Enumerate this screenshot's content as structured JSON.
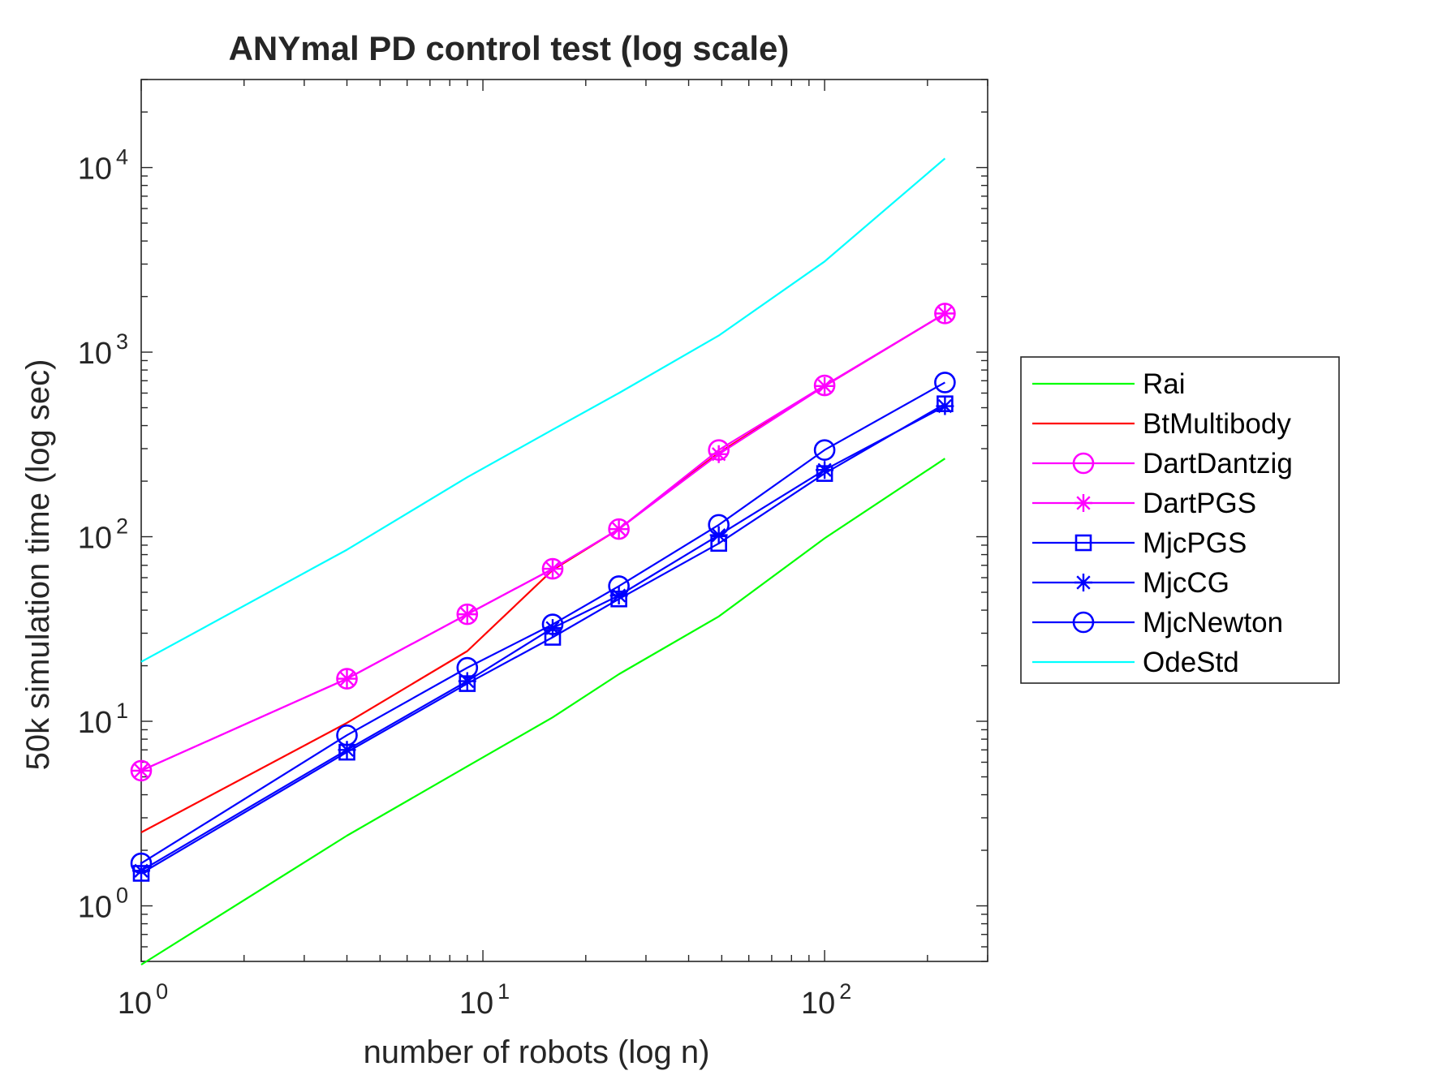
{
  "chart_data": {
    "type": "line",
    "title": "ANYmal PD control test (log scale)",
    "xlabel": "number of robots (log n)",
    "ylabel": "50k simulation time (log sec)",
    "xscale": "log",
    "yscale": "log",
    "xlim": [
      1,
      300
    ],
    "ylim": [
      0.5,
      30000
    ],
    "x_ticks": [
      {
        "base": "10",
        "exp": "0",
        "value": 1
      },
      {
        "base": "10",
        "exp": "1",
        "value": 10
      },
      {
        "base": "10",
        "exp": "2",
        "value": 100
      }
    ],
    "y_ticks": [
      {
        "base": "10",
        "exp": "0",
        "value": 1
      },
      {
        "base": "10",
        "exp": "1",
        "value": 10
      },
      {
        "base": "10",
        "exp": "2",
        "value": 100
      },
      {
        "base": "10",
        "exp": "3",
        "value": 1000
      },
      {
        "base": "10",
        "exp": "4",
        "value": 10000
      }
    ],
    "grid": false,
    "legend_position": "outside-right",
    "series": [
      {
        "name": "Rai",
        "color": "#00ff00",
        "marker": "none",
        "x": [
          1,
          4,
          9,
          16,
          25,
          49,
          100,
          225
        ],
        "y": [
          0.48,
          2.4,
          5.7,
          10.5,
          18,
          37,
          98,
          265
        ]
      },
      {
        "name": "BtMultibody",
        "color": "#ff0000",
        "marker": "none",
        "x": [
          1,
          4,
          9,
          16,
          25,
          49,
          100,
          225
        ],
        "y": [
          2.5,
          9.8,
          24,
          66,
          110,
          285,
          655,
          1620
        ]
      },
      {
        "name": "DartDantzig",
        "color": "#ff00ff",
        "marker": "circle",
        "x": [
          1,
          4,
          9,
          16,
          25,
          49,
          100,
          225
        ],
        "y": [
          5.4,
          17,
          38,
          67,
          110,
          295,
          660,
          1620
        ]
      },
      {
        "name": "DartPGS",
        "color": "#ff00ff",
        "marker": "asterisk",
        "x": [
          1,
          4,
          9,
          16,
          25,
          49,
          100,
          225
        ],
        "y": [
          5.4,
          17,
          38,
          67,
          110,
          280,
          655,
          1620
        ]
      },
      {
        "name": "MjcPGS",
        "color": "#0000ff",
        "marker": "square",
        "x": [
          1,
          4,
          9,
          16,
          25,
          49,
          100,
          225
        ],
        "y": [
          1.5,
          6.8,
          16,
          28.5,
          46,
          92,
          220,
          525
        ]
      },
      {
        "name": "MjcCG",
        "color": "#0000ff",
        "marker": "asterisk",
        "x": [
          1,
          4,
          9,
          16,
          25,
          49,
          100,
          225
        ],
        "y": [
          1.55,
          7.0,
          16.5,
          32,
          48,
          102,
          230,
          510
        ]
      },
      {
        "name": "MjcNewton",
        "color": "#0000ff",
        "marker": "circle",
        "x": [
          1,
          4,
          9,
          16,
          25,
          49,
          100,
          225
        ],
        "y": [
          1.7,
          8.4,
          19.5,
          33.5,
          54,
          116,
          295,
          685
        ]
      },
      {
        "name": "OdeStd",
        "color": "#00ffff",
        "marker": "none",
        "x": [
          1,
          4,
          9,
          16,
          25,
          49,
          100,
          225
        ],
        "y": [
          21,
          85,
          210,
          380,
          600,
          1230,
          3100,
          11200
        ]
      }
    ]
  }
}
